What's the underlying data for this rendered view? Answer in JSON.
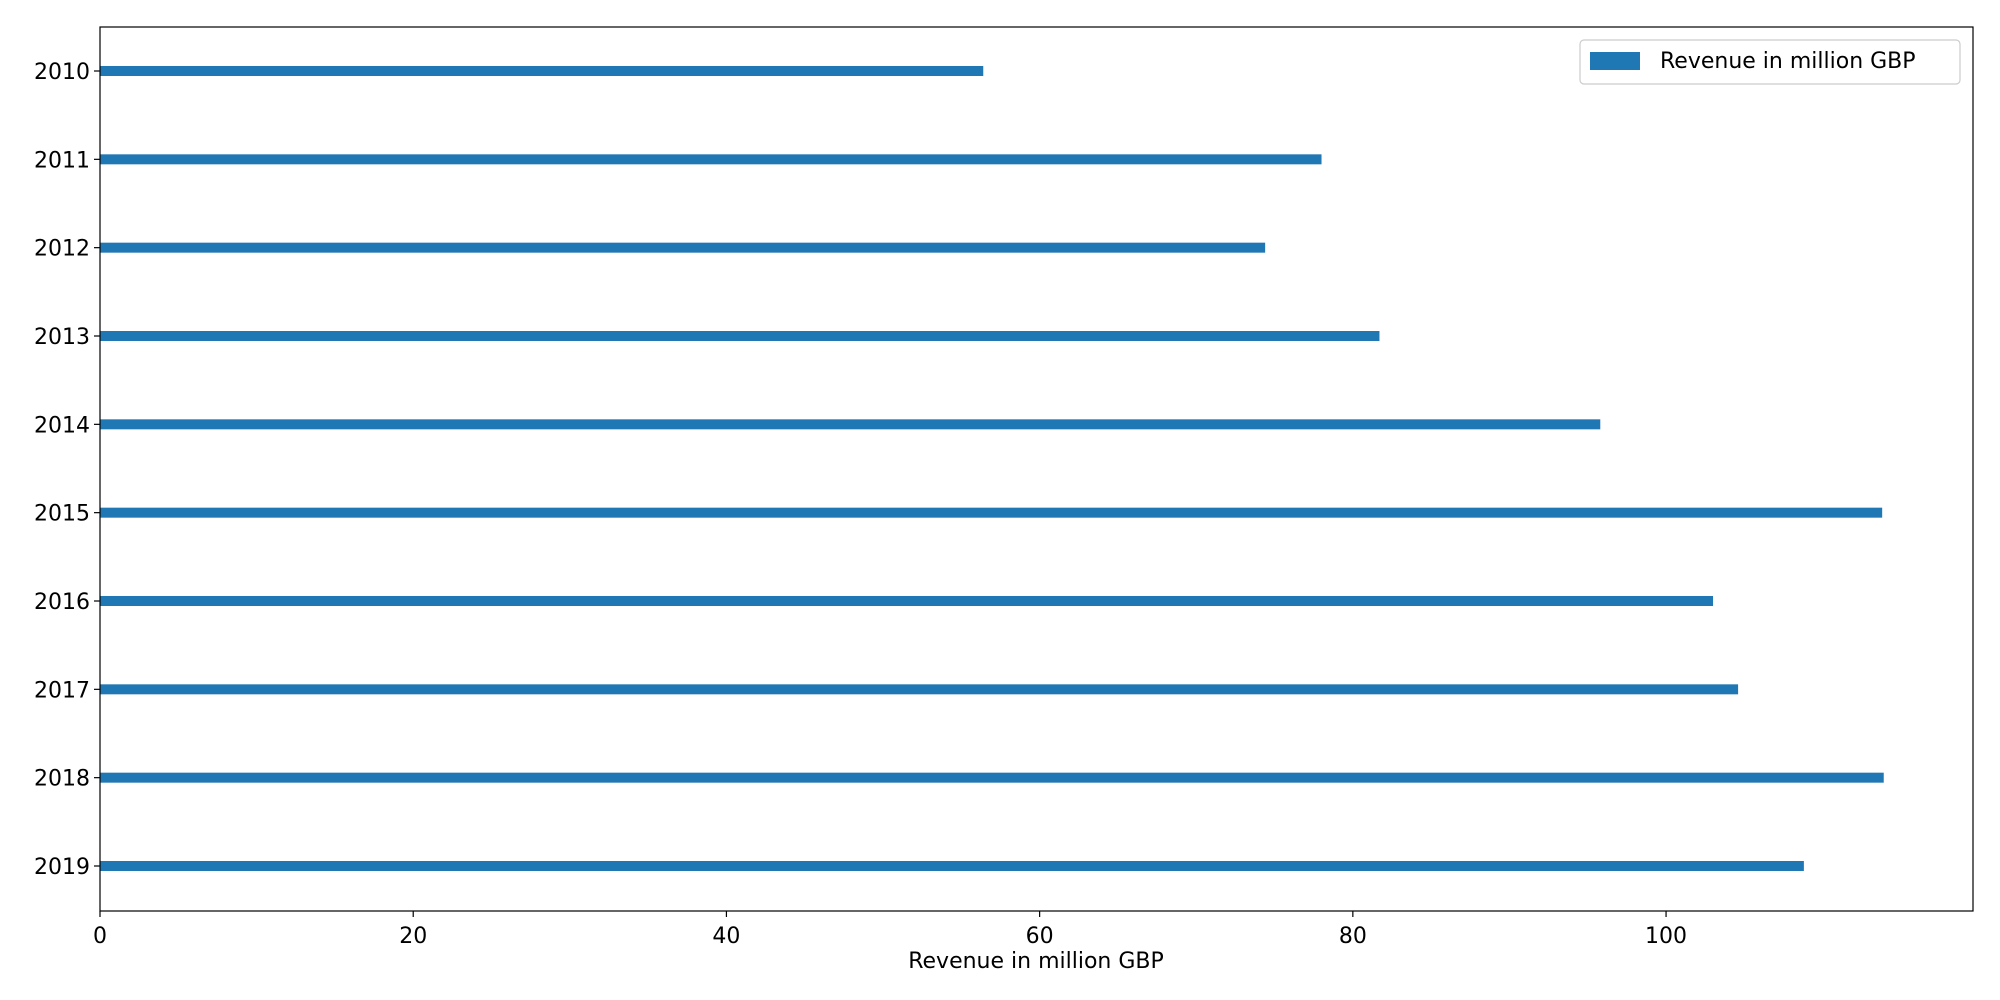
{
  "chart_data": {
    "type": "bar",
    "orientation": "horizontal",
    "categories": [
      "2010",
      "2011",
      "2012",
      "2013",
      "2014",
      "2015",
      "2016",
      "2017",
      "2018",
      "2019"
    ],
    "series": [
      {
        "name": "Revenue in million GBP",
        "values": [
          56.4,
          78.0,
          74.4,
          81.7,
          95.8,
          113.8,
          103.0,
          104.6,
          113.9,
          108.8
        ],
        "color": "#1f77b4"
      }
    ],
    "xlabel": "Revenue in million GBP",
    "ylabel": "",
    "xlim": [
      0,
      119.6
    ],
    "x_ticks": [
      0,
      20,
      40,
      60,
      80,
      100
    ],
    "y_inverted": true,
    "grid": false,
    "legend_position": "top-right"
  }
}
